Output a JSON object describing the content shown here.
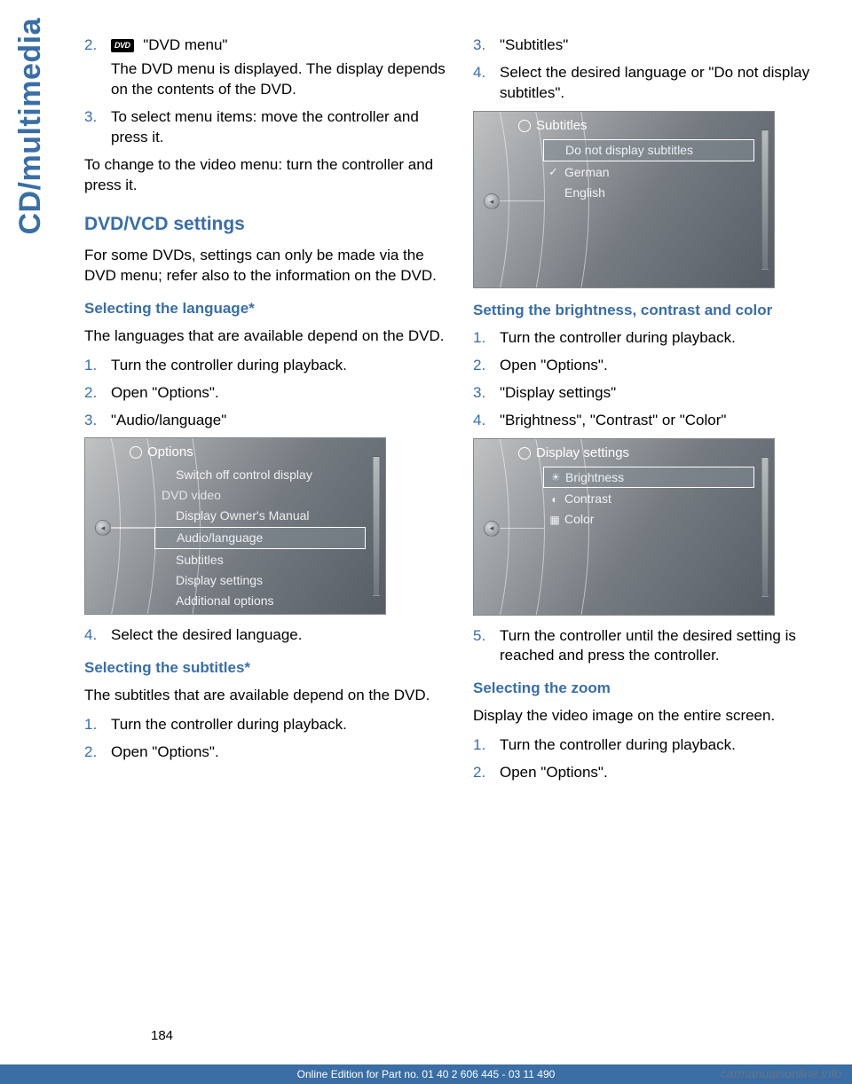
{
  "sideTab": "CD/multimedia",
  "pageNumber": "184",
  "footer": "Online Edition for Part no. 01 40 2 606 445 - 03 11 490",
  "watermark": "carmanualsonline.info",
  "left": {
    "li2_a": " \"DVD menu\"",
    "li2_b": "The DVD menu is displayed. The display depends on the contents of the DVD.",
    "li3": "To select menu items: move the controller and press it.",
    "p1": "To change to the video menu: turn the controller and press it.",
    "h2": "DVD/VCD settings",
    "p2": "For some DVDs, settings can only be made via the DVD menu; refer also to the information on the DVD.",
    "h3a": "Selecting the language*",
    "p3": "The languages that are available depend on the DVD.",
    "la1": "Turn the controller during playback.",
    "la2": "Open \"Options\".",
    "la3": "\"Audio/language\"",
    "shotA": {
      "header": "Options",
      "rows": [
        {
          "label": "Switch off control display"
        },
        {
          "label": "DVD video",
          "group": true
        },
        {
          "label": "Display Owner's Manual"
        },
        {
          "label": "Audio/language",
          "selected": true
        },
        {
          "label": "Subtitles"
        },
        {
          "label": "Display settings"
        },
        {
          "label": "Additional options"
        }
      ]
    },
    "la4": "Select the desired language.",
    "h3b": "Selecting the subtitles*",
    "p4": "The subtitles that are available depend on the DVD.",
    "lb1": "Turn the controller during playback.",
    "lb2": "Open \"Options\"."
  },
  "right": {
    "li3": "\"Subtitles\"",
    "li4": "Select the desired language or \"Do not display subtitles\".",
    "shotB": {
      "header": "Subtitles",
      "rows": [
        {
          "label": "Do not display subtitles",
          "selected": true
        },
        {
          "label": "German",
          "checked": true
        },
        {
          "label": "English"
        }
      ]
    },
    "h3a": "Setting the brightness, contrast and color",
    "ra1": "Turn the controller during playback.",
    "ra2": "Open \"Options\".",
    "ra3": "\"Display settings\"",
    "ra4": "\"Brightness\", \"Contrast\" or \"Color\"",
    "shotC": {
      "header": "Display settings",
      "rows": [
        {
          "label": "Brightness",
          "selected": true,
          "icon": "☀"
        },
        {
          "label": "Contrast",
          "icon": "◐"
        },
        {
          "label": "Color",
          "icon": "▦"
        }
      ]
    },
    "ra5": "Turn the controller until the desired setting is reached and press the controller.",
    "h3b": "Selecting the zoom",
    "p1": "Display the video image on the entire screen.",
    "rb1": "Turn the controller during playback.",
    "rb2": "Open \"Options\"."
  }
}
